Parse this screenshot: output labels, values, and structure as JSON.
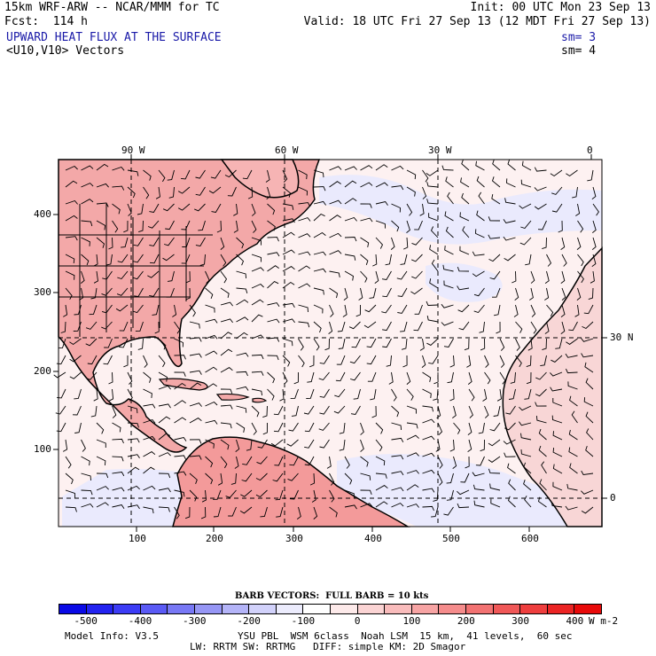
{
  "header": {
    "model": "15km WRF-ARW -- NCAR/MMM for TC",
    "init": "Init: 00 UTC Mon 23 Sep 13",
    "fcst": "Fcst:  114 h",
    "valid": "Valid: 18 UTC Fri 27 Sep 13 (12 MDT Fri 27 Sep 13)",
    "field1": "UPWARD HEAT FLUX AT THE SURFACE",
    "field1_sm": "sm= 3",
    "field2": "<U10,V10> Vectors",
    "field2_sm": "sm= 4"
  },
  "map": {
    "top_lon_labels": [
      "90 W",
      "60 W",
      "30 W",
      "0"
    ],
    "right_lat_labels": [
      "30 N",
      "0"
    ],
    "left_y_ticks": [
      "400",
      "300",
      "200",
      "100"
    ],
    "bottom_x_ticks": [
      "100",
      "200",
      "300",
      "400",
      "500",
      "600"
    ]
  },
  "colorbar": {
    "title": "BARB VECTORS:  FULL BARB = 10 kts",
    "labels": [
      "-500",
      "-400",
      "-300",
      "-200",
      "-100",
      "0",
      "100",
      "200",
      "300",
      "400"
    ],
    "units": "W m-2",
    "colors": [
      "#0a0ae6",
      "#2323f0",
      "#3c3cf5",
      "#5a5af5",
      "#7878f5",
      "#9696f5",
      "#b4b4f8",
      "#d2d2fb",
      "#ececfd",
      "#ffffff",
      "#fdeaea",
      "#fbd4d4",
      "#f9bcbc",
      "#f7a4a4",
      "#f58c8c",
      "#f27272",
      "#f05858",
      "#ee3e3e",
      "#eb2424",
      "#e80a0a"
    ]
  },
  "footer": {
    "model_info": "Model Info: V3.5",
    "physics1": "YSU PBL  WSM 6class  Noah LSM  15 km,  41 levels,  60 sec",
    "physics2": "LW: RRTM SW: RRTMG   DIFF: simple KM: 2D Smagor"
  }
}
